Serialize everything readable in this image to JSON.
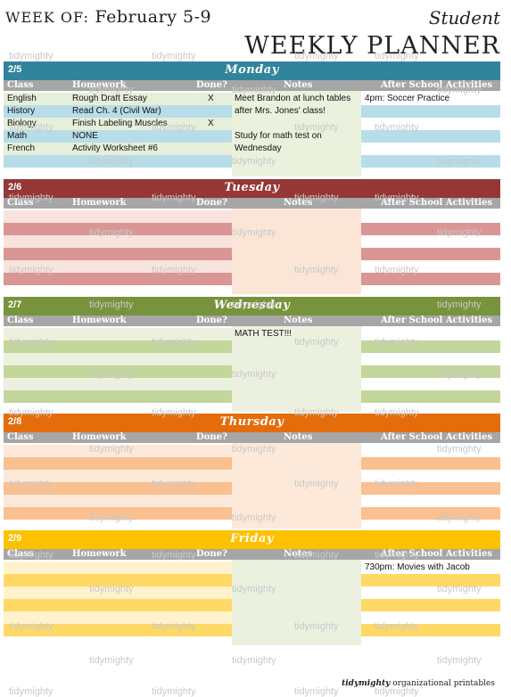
{
  "header": {
    "week_label": "WEEK OF:",
    "week_dates": "February 5-9",
    "student": "Student",
    "title": "WEEKLY PLANNER"
  },
  "columns": {
    "class": "Class",
    "homework": "Homework",
    "done": "Done?",
    "notes": "Notes",
    "activities": "After School Activities"
  },
  "days": [
    {
      "date": "2/5",
      "name": "Monday",
      "colors": {
        "bar": "#31849b",
        "row": "#b7dde8",
        "light": "#e6efd9",
        "notes": "#eaf1dd",
        "act": "#b7dde8"
      },
      "rows": [
        {
          "class": "English",
          "homework": "Rough Draft Essay",
          "done": "X"
        },
        {
          "class": "History",
          "homework": "Read Ch. 4 (Civil War)",
          "done": ""
        },
        {
          "class": "Biology",
          "homework": "Finish Labeling Muscles",
          "done": "X"
        },
        {
          "class": "Math",
          "homework": "NONE",
          "done": ""
        },
        {
          "class": "French",
          "homework": "Activity Worksheet #6",
          "done": ""
        }
      ],
      "notes": [
        "Meet Brandon at lunch tables",
        "after Mrs. Jones' class!",
        "",
        "Study for math test on",
        "Wednesday"
      ],
      "activities": [
        "4pm: Soccer Practice",
        "",
        "",
        "",
        ""
      ]
    },
    {
      "date": "2/6",
      "name": "Tuesday",
      "colors": {
        "bar": "#953735",
        "row": "#d99694",
        "light": "#f9e4dd",
        "notes": "#fbe5d6",
        "act": "#d99694"
      },
      "rows": [
        {
          "class": "",
          "homework": "",
          "done": ""
        },
        {
          "class": "",
          "homework": "",
          "done": ""
        },
        {
          "class": "",
          "homework": "",
          "done": ""
        },
        {
          "class": "",
          "homework": "",
          "done": ""
        },
        {
          "class": "",
          "homework": "",
          "done": ""
        }
      ],
      "notes": [
        "",
        "",
        "",
        "",
        ""
      ],
      "activities": [
        "",
        "",
        "",
        "",
        ""
      ]
    },
    {
      "date": "2/7",
      "name": "Wednesday",
      "colors": {
        "bar": "#77933c",
        "row": "#c3d69b",
        "light": "#ebf1de",
        "notes": "#ebf1de",
        "act": "#c3d69b"
      },
      "rows": [
        {
          "class": "",
          "homework": "",
          "done": ""
        },
        {
          "class": "",
          "homework": "",
          "done": ""
        },
        {
          "class": "",
          "homework": "",
          "done": ""
        },
        {
          "class": "",
          "homework": "",
          "done": ""
        },
        {
          "class": "",
          "homework": "",
          "done": ""
        }
      ],
      "notes": [
        "MATH TEST!!!",
        "",
        "",
        "",
        ""
      ],
      "activities": [
        "",
        "",
        "",
        "",
        ""
      ]
    },
    {
      "date": "2/8",
      "name": "Thursday",
      "colors": {
        "bar": "#e46c0a",
        "row": "#fac090",
        "light": "#fde9d9",
        "notes": "#fde9d9",
        "act": "#fac090"
      },
      "rows": [
        {
          "class": "",
          "homework": "",
          "done": ""
        },
        {
          "class": "",
          "homework": "",
          "done": ""
        },
        {
          "class": "",
          "homework": "",
          "done": ""
        },
        {
          "class": "",
          "homework": "",
          "done": ""
        },
        {
          "class": "",
          "homework": "",
          "done": ""
        }
      ],
      "notes": [
        "",
        "",
        "",
        "",
        ""
      ],
      "activities": [
        "",
        "",
        "",
        "",
        ""
      ]
    },
    {
      "date": "2/9",
      "name": "Friday",
      "colors": {
        "bar": "#ffc000",
        "row": "#ffd966",
        "light": "#fff2cc",
        "notes": "#ebf1de",
        "act": "#ffd966"
      },
      "rows": [
        {
          "class": "",
          "homework": "",
          "done": ""
        },
        {
          "class": "",
          "homework": "",
          "done": ""
        },
        {
          "class": "",
          "homework": "",
          "done": ""
        },
        {
          "class": "",
          "homework": "",
          "done": ""
        },
        {
          "class": "",
          "homework": "",
          "done": ""
        }
      ],
      "notes": [
        "",
        "",
        "",
        "",
        ""
      ],
      "activities": [
        "730pm: Movies with Jacob",
        "",
        "",
        "",
        ""
      ]
    }
  ],
  "watermark": "tidymighty",
  "footer": {
    "brand": "tidymighty",
    "text": "organizational printables"
  }
}
